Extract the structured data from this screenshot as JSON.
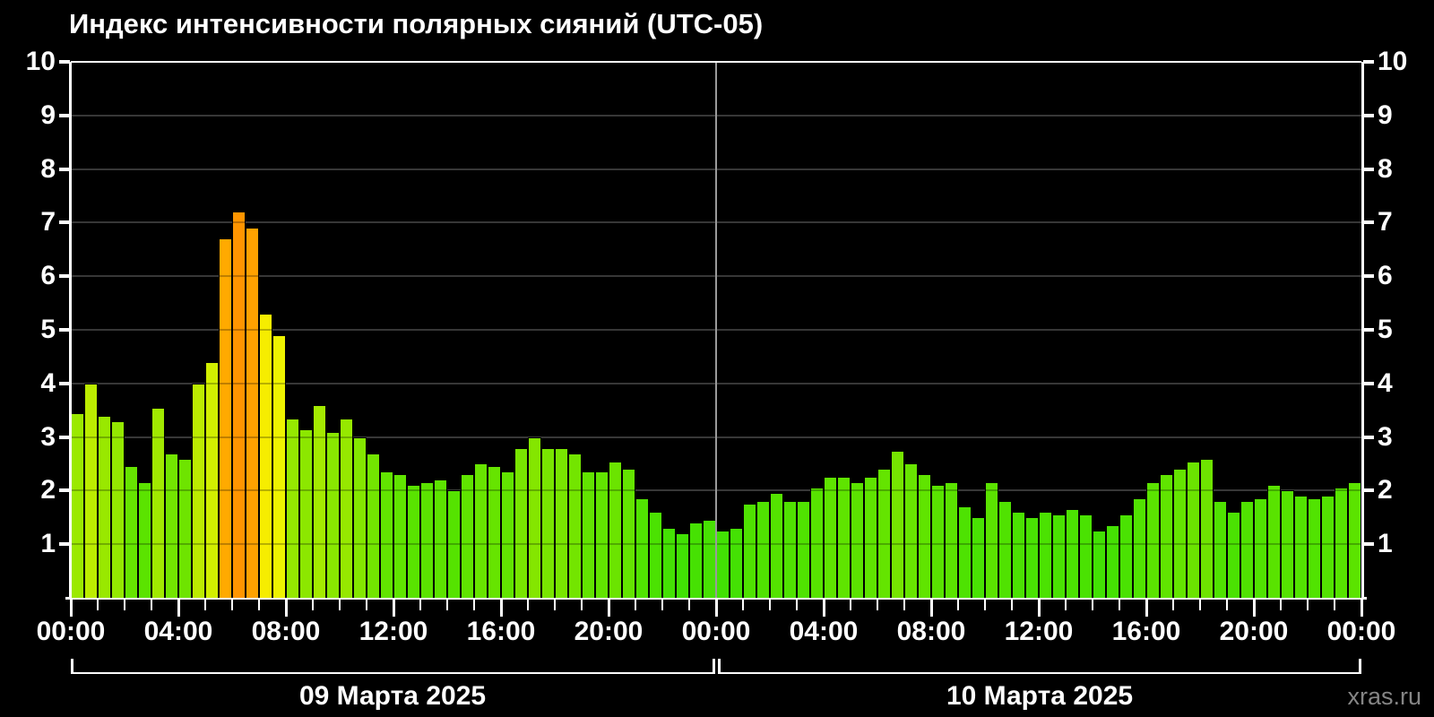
{
  "title": "Индекс интенсивности полярных сияний (UTC-05)",
  "footer": {
    "watermark": "xras.ru"
  },
  "colors": {
    "background": "#000000",
    "grid": "#4a4a4a",
    "axis": "#ffffff",
    "day_separator": "#9a9a9a",
    "text": "#ffffff",
    "watermark_text": "#858585"
  },
  "chart_data": {
    "type": "bar",
    "title": "Индекс интенсивности полярных сияний (UTC-05)",
    "xlabel": "",
    "ylabel": "",
    "ylim": [
      0,
      10
    ],
    "grid": true,
    "bar_interval_minutes": 30,
    "y_tick_labels": [
      "1",
      "2",
      "3",
      "4",
      "5",
      "6",
      "7",
      "8",
      "9",
      "10"
    ],
    "x_tick_labels": [
      "00:00",
      "04:00",
      "08:00",
      "12:00",
      "16:00",
      "20:00",
      "00:00",
      "04:00",
      "08:00",
      "12:00",
      "16:00",
      "20:00",
      "00:00"
    ],
    "x_major_tick_hours": [
      0,
      4,
      8,
      12,
      16,
      20,
      24,
      28,
      32,
      36,
      40,
      44,
      48
    ],
    "days": [
      {
        "date_label": "09 Марта 2025",
        "start_hour": 0,
        "values": [
          3.45,
          4.0,
          3.4,
          3.3,
          2.45,
          2.15,
          3.55,
          2.7,
          2.6,
          4.0,
          4.4,
          6.7,
          7.2,
          6.9,
          5.3,
          4.9,
          3.35,
          3.15,
          3.6,
          3.1,
          3.35,
          3.0,
          2.7,
          2.35,
          2.3,
          2.1,
          2.15,
          2.2,
          2.0,
          2.3,
          2.5,
          2.45,
          2.35,
          2.8,
          3.0,
          2.8,
          2.8,
          2.7,
          2.35,
          2.35,
          2.55,
          2.4,
          1.85,
          1.6,
          1.3,
          1.2,
          1.4,
          1.45
        ]
      },
      {
        "date_label": "10 Марта 2025",
        "start_hour": 24,
        "values": [
          1.25,
          1.3,
          1.75,
          1.8,
          1.95,
          1.8,
          1.8,
          2.05,
          2.25,
          2.25,
          2.15,
          2.25,
          2.4,
          2.75,
          2.5,
          2.3,
          2.1,
          2.15,
          1.7,
          1.5,
          2.15,
          1.8,
          1.6,
          1.5,
          1.6,
          1.55,
          1.65,
          1.55,
          1.25,
          1.35,
          1.55,
          1.85,
          2.15,
          2.3,
          2.4,
          2.55,
          2.6,
          1.8,
          1.6,
          1.8,
          1.85,
          2.1,
          2.0,
          1.9,
          1.85,
          1.9,
          2.05,
          2.15
        ]
      }
    ],
    "color_scale": [
      {
        "value": 0.0,
        "color": "#2add00"
      },
      {
        "value": 1.0,
        "color": "#3ce005"
      },
      {
        "value": 2.0,
        "color": "#55e300"
      },
      {
        "value": 2.5,
        "color": "#68e400"
      },
      {
        "value": 3.0,
        "color": "#84e600"
      },
      {
        "value": 3.5,
        "color": "#9ee900"
      },
      {
        "value": 4.0,
        "color": "#bcec00"
      },
      {
        "value": 4.5,
        "color": "#d8f000"
      },
      {
        "value": 5.0,
        "color": "#f4f400"
      },
      {
        "value": 5.5,
        "color": "#f8e800"
      },
      {
        "value": 6.0,
        "color": "#ffcc00"
      },
      {
        "value": 6.7,
        "color": "#ffaa00"
      },
      {
        "value": 7.2,
        "color": "#ff9500"
      },
      {
        "value": 10.0,
        "color": "#ff2000"
      }
    ]
  }
}
